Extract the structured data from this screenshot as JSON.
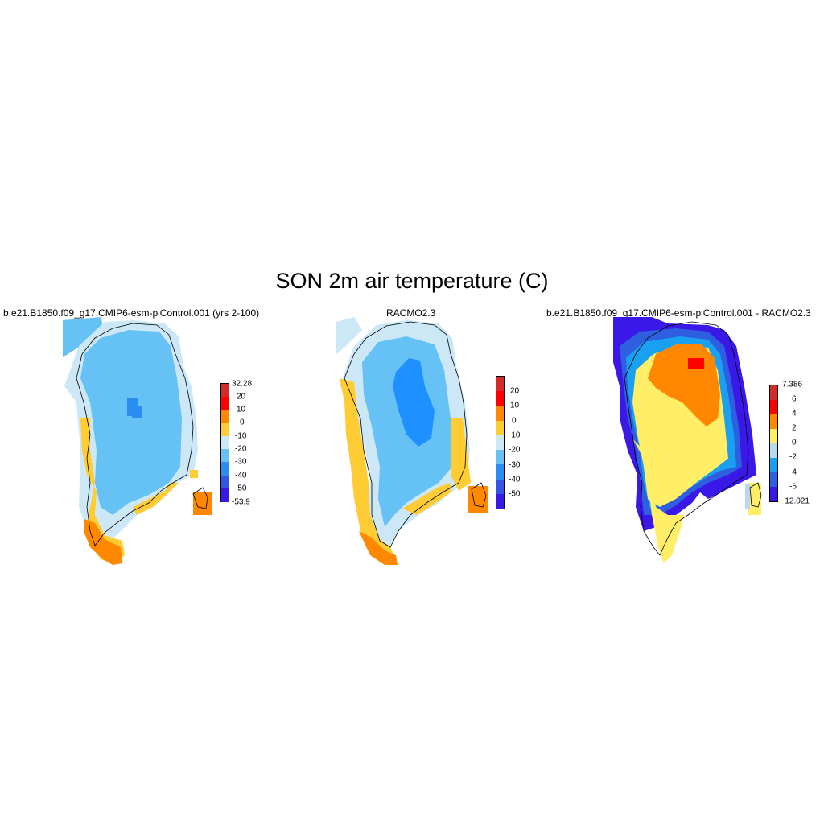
{
  "title": "SON 2m air temperature (C)",
  "panels": [
    {
      "title": "b.e21.B1850.f09_g17.CMIP6-esm-piControl.001 (yrs 2-100)",
      "colorbar": {
        "labels": [
          "32.28",
          "20",
          "10",
          "0",
          "-10",
          "-20",
          "-30",
          "-40",
          "-50",
          "-53.9"
        ],
        "colors": [
          "#d32a2a",
          "#ff0000",
          "#ff8800",
          "#ffcc33",
          "#cce8f7",
          "#66c2f5",
          "#2a8ef0",
          "#3355e6",
          "#3a18e8"
        ]
      }
    },
    {
      "title": "RACMO2.3",
      "colorbar": {
        "labels": [
          "20",
          "10",
          "0",
          "-10",
          "-20",
          "-30",
          "-40",
          "-50"
        ],
        "colors": [
          "#d32a2a",
          "#ff0000",
          "#ff8800",
          "#ffcc33",
          "#cce8f7",
          "#66c2f5",
          "#2a8ef0",
          "#3355e6",
          "#3a18e8"
        ]
      }
    },
    {
      "title": "b.e21.B1850.f09_g17.CMIP6-esm-piControl.001 - RACMO2.3",
      "colorbar": {
        "labels": [
          "7.386",
          "6",
          "4",
          "2",
          "0",
          "-2",
          "-4",
          "-6",
          "-12.021"
        ],
        "colors": [
          "#d32a2a",
          "#ff0000",
          "#ff8800",
          "#ffee66",
          "#b8d8ee",
          "#1aa0f0",
          "#2d5fe0",
          "#3a18e8"
        ]
      }
    }
  ]
}
